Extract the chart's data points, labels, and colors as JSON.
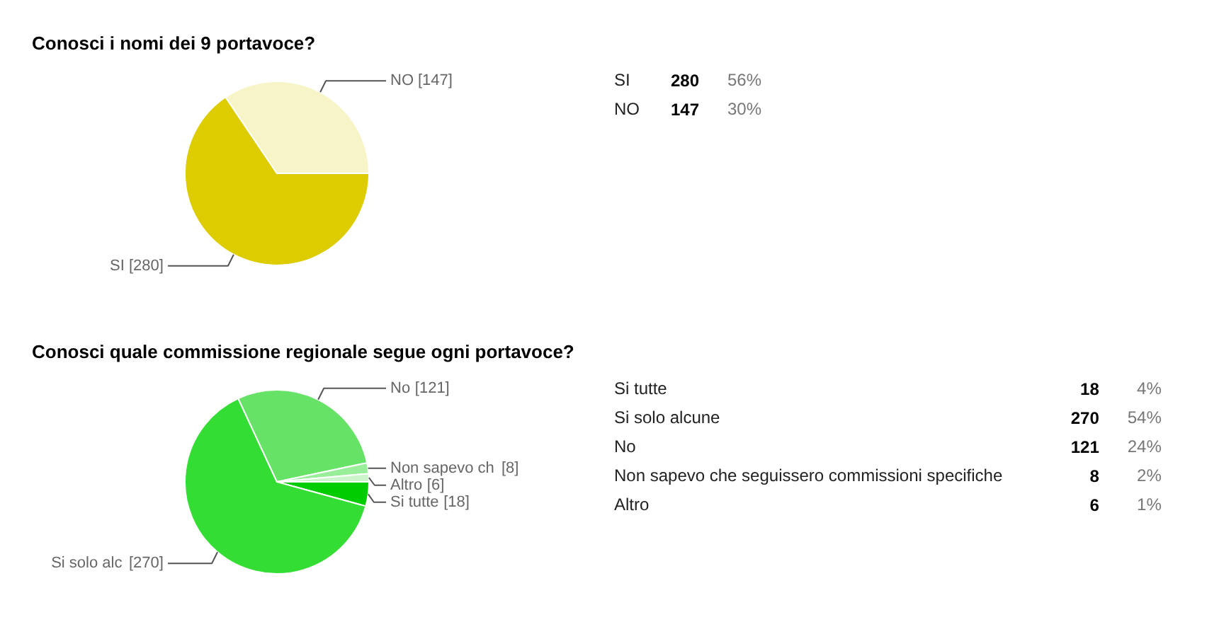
{
  "chart_data": [
    {
      "type": "pie",
      "title": "Conosci i nomi dei 9 portavoce?",
      "categories": [
        "SI",
        "NO"
      ],
      "values": [
        280,
        147
      ],
      "colors": [
        "#dccc00",
        "#f7f4c8"
      ],
      "value_labels": [
        "[280]",
        "[147]"
      ]
    },
    {
      "type": "other",
      "annotations": [
        "SI",
        "280",
        "56%",
        "NO",
        "147",
        "30%"
      ]
    },
    {
      "type": "pie",
      "title": "Conosci quale commissione regionale segue ogni portavoce?",
      "categories": [
        "Si tutte",
        "Si solo alc",
        "No",
        "Non sapevo ch",
        "Altro"
      ],
      "values": [
        18,
        270,
        121,
        8,
        6
      ],
      "colors": [
        "#00cc00",
        "#33dd33",
        "#66e366",
        "#99ee99",
        "#ccf5cc"
      ],
      "value_labels": [
        "[18]",
        "[270]",
        "[121]",
        "[8]",
        "[6]"
      ]
    },
    {
      "type": "other",
      "annotations": [
        "Si tutte",
        "18",
        "4%",
        "Si solo alcune",
        "270",
        "54%",
        "No",
        "121",
        "24%",
        "Non sapevo che seguissero commissioni specifiche",
        "8",
        "2%",
        "Altro",
        "6",
        "1%"
      ]
    }
  ]
}
